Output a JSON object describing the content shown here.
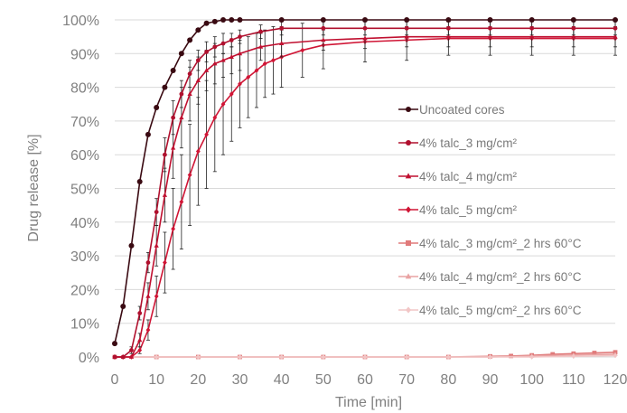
{
  "chart_data": {
    "type": "line",
    "xlabel": "Time [min]",
    "ylabel": "Drug release [%]",
    "xlim": [
      0,
      120
    ],
    "ylim": [
      0,
      100
    ],
    "x_ticks": [
      0,
      10,
      20,
      30,
      40,
      50,
      60,
      70,
      80,
      90,
      100,
      110,
      120
    ],
    "x_tick_labels": [
      "0",
      "10",
      "20",
      "30",
      "40",
      "50",
      "60",
      "70",
      "80",
      "90",
      "100",
      "110",
      "120"
    ],
    "y_ticks": [
      0,
      10,
      20,
      30,
      40,
      50,
      60,
      70,
      80,
      90,
      100
    ],
    "y_tick_labels": [
      "0%",
      "10%",
      "20%",
      "30%",
      "40%",
      "50%",
      "60%",
      "70%",
      "80%",
      "90%",
      "100%"
    ],
    "grid": "horizontal",
    "legend_position": "right",
    "series": [
      {
        "name": "Uncoated cores",
        "color": "#3a0a12",
        "marker": "circle",
        "x": [
          0,
          2,
          4,
          6,
          8,
          10,
          12,
          14,
          16,
          18,
          20,
          22,
          24,
          26,
          28,
          30,
          40,
          50,
          60,
          70,
          80,
          90,
          100,
          110,
          120
        ],
        "y": [
          4,
          15,
          33,
          52,
          66,
          74,
          80,
          85,
          90,
          94,
          97,
          99,
          99.5,
          100,
          100,
          100,
          100,
          100,
          100,
          100,
          100,
          100,
          100,
          100,
          100
        ]
      },
      {
        "name": "4% talc_3 mg/cm²",
        "color": "#b0102e",
        "marker": "circle",
        "x": [
          0,
          2,
          4,
          6,
          8,
          10,
          12,
          14,
          16,
          18,
          20,
          22,
          24,
          26,
          28,
          30,
          35,
          40,
          50,
          60,
          70,
          80,
          90,
          100,
          110,
          120
        ],
        "y": [
          0,
          0,
          2,
          13,
          28,
          43,
          60,
          71,
          78,
          84,
          88,
          90.5,
          92,
          93,
          94,
          95,
          96.5,
          97.5,
          97.5,
          97.5,
          97.5,
          97.5,
          97.5,
          97.5,
          97.5,
          97.5
        ],
        "error": [
          0,
          0,
          1,
          2,
          3,
          4,
          5,
          5,
          4,
          4,
          3,
          3,
          3,
          3,
          2,
          2,
          2,
          2,
          2,
          2,
          2,
          2,
          2,
          2,
          2,
          2
        ]
      },
      {
        "name": "4% talc_4 mg/cm²",
        "color": "#c01030",
        "marker": "triangle",
        "x": [
          0,
          2,
          4,
          6,
          8,
          10,
          12,
          14,
          16,
          18,
          20,
          22,
          24,
          26,
          28,
          30,
          35,
          40,
          50,
          60,
          70,
          80,
          90,
          100,
          110,
          120
        ],
        "y": [
          0,
          0,
          0,
          5,
          18,
          33,
          48,
          62,
          71,
          78,
          82,
          85,
          87,
          88,
          89,
          90,
          92,
          93,
          94,
          94.5,
          95,
          95,
          95,
          95,
          95,
          95
        ],
        "error": [
          0,
          0,
          0,
          2,
          4,
          6,
          8,
          9,
          9,
          8,
          7,
          6,
          6,
          5,
          5,
          5,
          4,
          4,
          3,
          3,
          3,
          3,
          3,
          3,
          3,
          3
        ]
      },
      {
        "name": "4% talc_5 mg/cm²",
        "color": "#d01535",
        "marker": "diamond",
        "x": [
          0,
          2,
          4,
          6,
          8,
          10,
          12,
          14,
          16,
          18,
          20,
          22,
          24,
          26,
          28,
          30,
          32,
          34,
          36,
          38,
          40,
          45,
          50,
          60,
          70,
          80,
          90,
          100,
          110,
          120
        ],
        "y": [
          0,
          0,
          0,
          2,
          8,
          18,
          28,
          38,
          46,
          54,
          61,
          66,
          71,
          75,
          78,
          81,
          83,
          85,
          87,
          88,
          89,
          91,
          92.5,
          93.5,
          94,
          94.5,
          94.5,
          94.5,
          94.5,
          94.5
        ],
        "error": [
          0,
          0,
          0,
          1,
          3,
          6,
          9,
          12,
          14,
          15,
          16,
          16,
          16,
          15,
          14,
          13,
          12,
          11,
          10,
          10,
          9,
          8,
          7,
          6,
          6,
          5,
          5,
          5,
          5,
          5
        ]
      },
      {
        "name": "4% talc_3 mg/cm²_2 hrs 60°C",
        "color": "#e07a7a",
        "marker": "square",
        "x": [
          0,
          10,
          20,
          30,
          40,
          50,
          60,
          70,
          80,
          90,
          95,
          100,
          105,
          110,
          115,
          120
        ],
        "y": [
          0,
          0,
          0,
          0,
          0,
          0,
          0,
          0,
          0,
          0.2,
          0.3,
          0.5,
          0.8,
          1,
          1.2,
          1.4
        ]
      },
      {
        "name": "4% talc_4 mg/cm²_2 hrs 60°C",
        "color": "#e9a3a3",
        "marker": "triangle",
        "x": [
          0,
          10,
          20,
          30,
          40,
          50,
          60,
          70,
          80,
          90,
          100,
          110,
          120
        ],
        "y": [
          0,
          0,
          0,
          0,
          0,
          0,
          0,
          0,
          0,
          0,
          0.3,
          0.6,
          0.8
        ]
      },
      {
        "name": "4% talc_5 mg/cm²_2 hrs 60°C",
        "color": "#f2c6c6",
        "marker": "diamond",
        "x": [
          0,
          10,
          20,
          30,
          40,
          50,
          60,
          70,
          80,
          90,
          100,
          110,
          120
        ],
        "y": [
          0,
          0,
          0,
          0,
          0,
          0,
          0,
          0,
          0,
          0,
          0,
          0.2,
          0.4
        ]
      }
    ]
  }
}
